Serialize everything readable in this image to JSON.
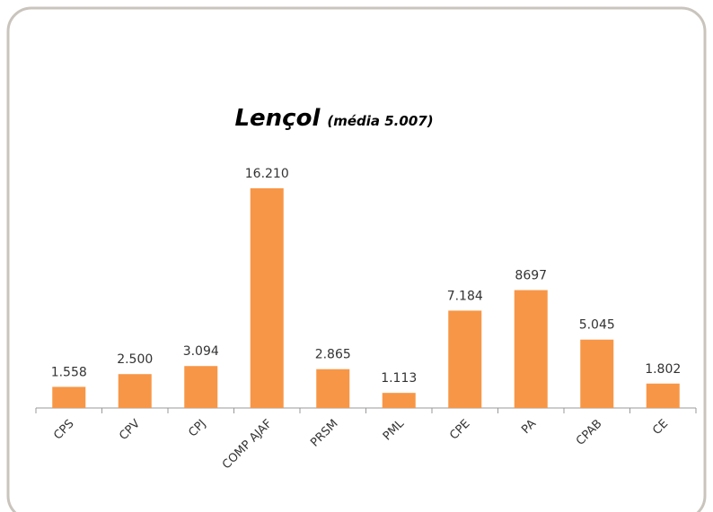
{
  "chart_data": {
    "type": "bar",
    "title": "Lençol",
    "subtitle": "(média 5.007)",
    "categories": [
      "CPS",
      "CPV",
      "CPJ",
      "COMP AJAF",
      "PRSM",
      "PML",
      "CPE",
      "PA",
      "CPAB",
      "CE"
    ],
    "values": [
      1558,
      2500,
      3094,
      16210,
      2865,
      1113,
      7184,
      8697,
      5045,
      1802
    ],
    "value_labels": [
      "1.558",
      "2.500",
      "3.094",
      "16.210",
      "2.865",
      "1.113",
      "7.184",
      "8697",
      "5.045",
      "1.802"
    ],
    "color": "#f79646"
  }
}
